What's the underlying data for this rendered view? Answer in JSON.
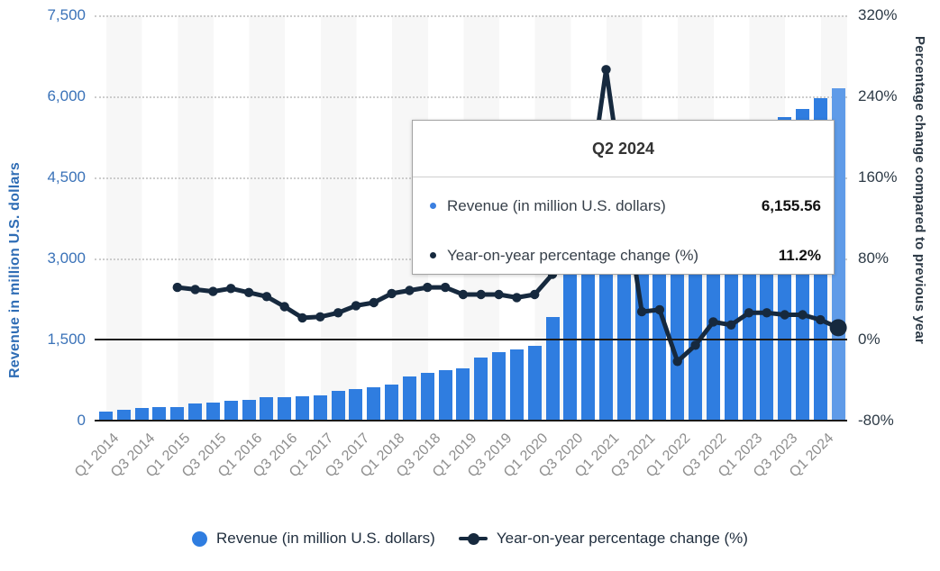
{
  "chart_data": {
    "type": "combo-bar-line",
    "title": "",
    "categories": [
      "Q1 2014",
      "Q2 2014",
      "Q3 2014",
      "Q4 2014",
      "Q1 2015",
      "Q2 2015",
      "Q3 2015",
      "Q4 2015",
      "Q1 2016",
      "Q2 2016",
      "Q3 2016",
      "Q4 2016",
      "Q1 2017",
      "Q2 2017",
      "Q3 2017",
      "Q4 2017",
      "Q1 2018",
      "Q2 2018",
      "Q3 2018",
      "Q4 2018",
      "Q1 2019",
      "Q2 2019",
      "Q3 2019",
      "Q4 2019",
      "Q1 2020",
      "Q2 2020",
      "Q3 2020",
      "Q4 2020",
      "Q1 2021",
      "Q2 2021",
      "Q3 2021",
      "Q4 2021",
      "Q1 2022",
      "Q2 2022",
      "Q3 2022",
      "Q4 2022",
      "Q1 2023",
      "Q2 2023",
      "Q3 2023",
      "Q4 2023",
      "Q1 2024",
      "Q2 2024"
    ],
    "series": [
      {
        "name": "Revenue (in million U.S. dollars)",
        "type": "bar",
        "axis": "left",
        "color": "#2f7de0",
        "values": [
          166,
          208,
          226,
          250,
          250.5,
          310,
          332.2,
          374.4,
          379.3,
          438.5,
          439.2,
          451.9,
          461.6,
          551.5,
          585.2,
          616,
          668.6,
          814.9,
          882.1,
          932.5,
          959.4,
          1174,
          1266.5,
          1313.8,
          1381.2,
          1923.5,
          3033.9,
          3159.4,
          5057,
          4681.8,
          3844.4,
          4077.5,
          3959.6,
          4403.7,
          4516.1,
          4652.9,
          4990.1,
          5532.4,
          5617.8,
          5770.5,
          5959.9,
          6155.56
        ]
      },
      {
        "name": "Year-on-year percentage change (%)",
        "type": "line",
        "axis": "right",
        "color": "#16293e",
        "values": [
          null,
          null,
          null,
          null,
          51,
          49,
          47,
          50,
          46,
          42,
          32,
          21,
          22,
          26,
          33,
          36,
          45,
          48,
          51,
          51,
          44,
          44,
          44,
          41,
          44,
          64,
          140,
          141,
          266,
          143,
          27,
          29,
          -22,
          -6,
          17,
          14,
          26,
          26,
          24,
          24,
          19,
          11.2
        ]
      }
    ],
    "left_axis": {
      "title": "Revenue in million U.S. dollars",
      "tick_labels": [
        "0",
        "1,500",
        "3,000",
        "4,500",
        "6,000",
        "7,500"
      ],
      "range": [
        0,
        7500
      ]
    },
    "right_axis": {
      "title": "Percentage change compared to previous year",
      "tick_labels": [
        "-80%",
        "0%",
        "80%",
        "160%",
        "240%",
        "320%"
      ],
      "range": [
        -80,
        320
      ]
    },
    "x_axis": {
      "tick_labels": [
        "Q1 2014",
        "Q3 2014",
        "Q1 2015",
        "Q3 2015",
        "Q1 2016",
        "Q3 2016",
        "Q1 2017",
        "Q3 2017",
        "Q1 2018",
        "Q3 2018",
        "Q1 2019",
        "Q3 2019",
        "Q1 2020",
        "Q3 2020",
        "Q1 2021",
        "Q3 2021",
        "Q1 2022",
        "Q3 2022",
        "Q1 2023",
        "Q3 2023",
        "Q1 2024"
      ]
    },
    "highlighted_category": "Q2 2024",
    "highlight_color": "#5f9be8",
    "grid": "horizontal dotted",
    "legend_position": "bottom"
  },
  "tooltip": {
    "title": "Q2 2024",
    "rows": [
      {
        "label": "Revenue (in million U.S. dollars)",
        "value": "6,155.56",
        "bullet_color": "#3b7fe0"
      },
      {
        "label": "Year-on-year percentage change (%)",
        "value": "11.2%",
        "bullet_color": "#16293e"
      }
    ]
  },
  "legend": {
    "items": [
      {
        "label": "Revenue (in million U.S. dollars)",
        "marker": "circle",
        "color": "#2f7de0"
      },
      {
        "label": "Year-on-year percentage change (%)",
        "marker": "line-dot",
        "color": "#16293e"
      }
    ]
  },
  "colors": {
    "bar": "#2f7de0",
    "bar_highlight": "#5f9be8",
    "line": "#16293e",
    "left_axis_text": "#3a72b8",
    "right_axis_text": "#2d3a46",
    "x_axis_text": "#8e8e8e",
    "stripe": "#f7f7f7",
    "gridline": "#cccccc"
  }
}
